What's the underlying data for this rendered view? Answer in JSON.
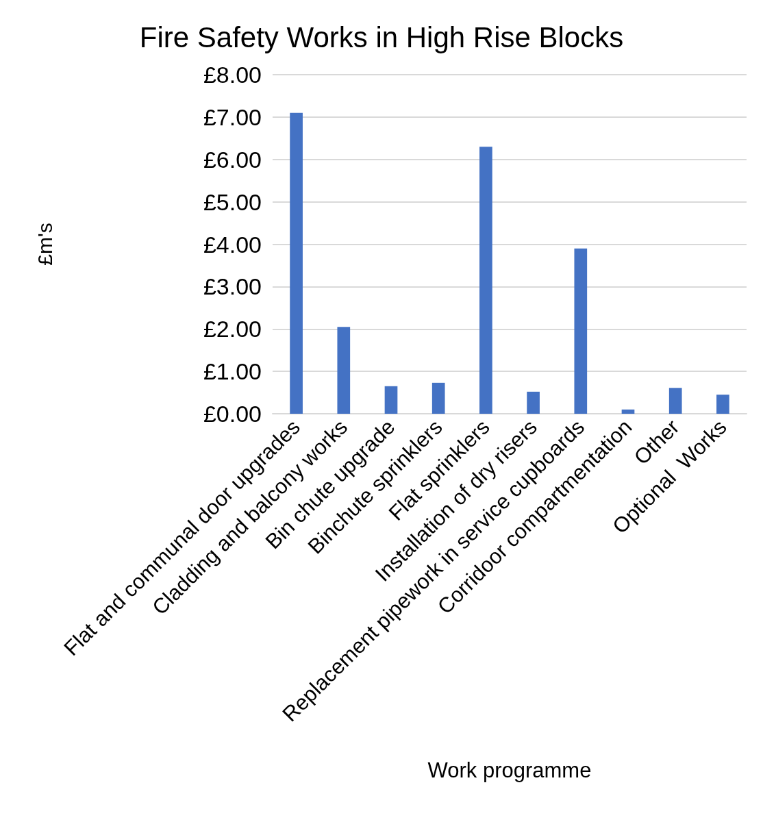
{
  "chart_data": {
    "type": "bar",
    "title": "Fire Safety Works in High Rise Blocks",
    "xlabel": "Work programme",
    "ylabel": "£m's",
    "categories": [
      "Flat and communal door upgrades",
      "Cladding and balcony works",
      "Bin chute upgrade",
      "Binchute sprinklers",
      "Flat sprinklers",
      "Installation of dry risers",
      "Replacement pipework in service cupboards",
      "Corridoor compartmentation",
      "Other",
      "Optional  Works"
    ],
    "values": [
      7.1,
      2.05,
      0.65,
      0.73,
      6.3,
      0.52,
      3.9,
      0.1,
      0.61,
      0.45
    ],
    "color": "#4472c4",
    "ylim": [
      0,
      8
    ],
    "yticks": [
      {
        "value": 0,
        "label": "£0.00"
      },
      {
        "value": 1,
        "label": "£1.00"
      },
      {
        "value": 2,
        "label": "£2.00"
      },
      {
        "value": 3,
        "label": "£3.00"
      },
      {
        "value": 4,
        "label": "£4.00"
      },
      {
        "value": 5,
        "label": "£5.00"
      },
      {
        "value": 6,
        "label": "£6.00"
      },
      {
        "value": 7,
        "label": "£7.00"
      },
      {
        "value": 8,
        "label": "£8.00"
      }
    ],
    "grid": "y"
  }
}
